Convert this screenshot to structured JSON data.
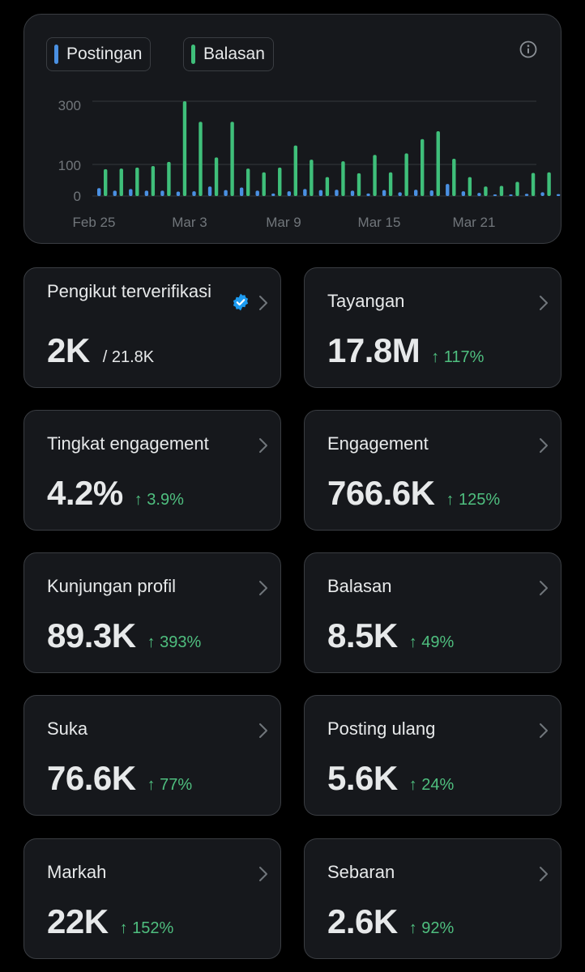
{
  "chart": {
    "legend": [
      {
        "label": "Postingan",
        "color": "#4a90e2"
      },
      {
        "label": "Balasan",
        "color": "#3fbf7a"
      }
    ],
    "info_icon": "info-icon",
    "y_ticks": [
      "300",
      "100",
      "0"
    ],
    "x_ticks": [
      "Feb 25",
      "Mar 3",
      "Mar 9",
      "Mar 15",
      "Mar 21"
    ]
  },
  "chart_data": {
    "type": "bar",
    "categories": [
      "Feb 25",
      "Feb 26",
      "Feb 27",
      "Feb 28",
      "Feb 29",
      "Mar 1",
      "Mar 2",
      "Mar 3",
      "Mar 4",
      "Mar 5",
      "Mar 6",
      "Mar 7",
      "Mar 8",
      "Mar 9",
      "Mar 10",
      "Mar 11",
      "Mar 12",
      "Mar 13",
      "Mar 14",
      "Mar 15",
      "Mar 16",
      "Mar 17",
      "Mar 18",
      "Mar 19",
      "Mar 20",
      "Mar 21",
      "Mar 22",
      "Mar 23",
      "Mar 24",
      "Mar 25",
      "Mar 26"
    ],
    "series": [
      {
        "name": "Postingan",
        "color": "#4a90e2",
        "values": [
          25,
          17,
          22,
          17,
          17,
          14,
          15,
          30,
          19,
          27,
          17,
          8,
          15,
          22,
          19,
          20,
          17,
          8,
          19,
          12,
          20,
          18,
          38,
          15,
          10,
          5,
          3,
          7,
          12,
          6,
          8
        ]
      },
      {
        "name": "Balasan",
        "color": "#3fbf7a",
        "values": [
          85,
          87,
          90,
          95,
          108,
          300,
          235,
          122,
          235,
          87,
          75,
          90,
          160,
          115,
          60,
          110,
          72,
          130,
          75,
          135,
          180,
          205,
          118,
          60,
          30,
          32,
          45,
          73,
          75,
          50,
          43
        ]
      }
    ],
    "ylim": [
      0,
      320
    ],
    "grid": true
  },
  "cards": [
    {
      "label": "Pengikut terverifikasi",
      "value": "2K",
      "sub": "/ 21.8K",
      "change": "",
      "verified": true
    },
    {
      "label": "Tayangan",
      "value": "17.8M",
      "sub": "",
      "change": "↑ 117%"
    },
    {
      "label": "Tingkat engagement",
      "value": "4.2%",
      "sub": "",
      "change": "↑ 3.9%"
    },
    {
      "label": "Engagement",
      "value": "766.6K",
      "sub": "",
      "change": "↑ 125%"
    },
    {
      "label": "Kunjungan profil",
      "value": "89.3K",
      "sub": "",
      "change": "↑ 393%"
    },
    {
      "label": "Balasan",
      "value": "8.5K",
      "sub": "",
      "change": "↑ 49%"
    },
    {
      "label": "Suka",
      "value": "76.6K",
      "sub": "",
      "change": "↑ 77%"
    },
    {
      "label": "Posting ulang",
      "value": "5.6K",
      "sub": "",
      "change": "↑ 24%"
    },
    {
      "label": "Markah",
      "value": "22K",
      "sub": "",
      "change": "↑ 152%"
    },
    {
      "label": "Sebaran",
      "value": "2.6K",
      "sub": "",
      "change": "↑ 92%"
    }
  ],
  "colors": {
    "accent_green": "#4fbf7f",
    "card_bg": "#16181c",
    "border": "#3a3d42",
    "verified_blue": "#1d9bf0"
  }
}
